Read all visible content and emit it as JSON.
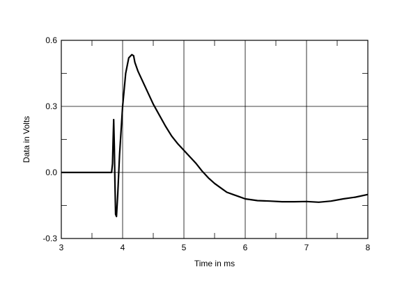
{
  "chart_data": {
    "type": "line",
    "title": "",
    "xlabel": "Time in ms",
    "ylabel": "Data in Volts",
    "xlim": [
      3,
      8
    ],
    "ylim": [
      -0.3,
      0.6
    ],
    "xticks": [
      3,
      4,
      5,
      6,
      7,
      8
    ],
    "yticks": [
      -0.3,
      0.0,
      0.3,
      0.6
    ],
    "xtick_labels": [
      "3",
      "4",
      "5",
      "6",
      "7",
      "8"
    ],
    "ytick_labels": [
      "-0.3",
      "0.0",
      "0.3",
      "0.6"
    ],
    "grid": true,
    "legend": "none",
    "line_color": "#000000",
    "series": [
      {
        "x": [
          3.0,
          3.5,
          3.8,
          3.82,
          3.835,
          3.845,
          3.855,
          3.865,
          3.875,
          3.885,
          3.9,
          3.92,
          3.95,
          4.0,
          4.05,
          4.1,
          4.15,
          4.18,
          4.2,
          4.25,
          4.3,
          4.4,
          4.5,
          4.6,
          4.7,
          4.8,
          4.9,
          5.0,
          5.1,
          5.2,
          5.3,
          5.4,
          5.5,
          5.6,
          5.7,
          5.8,
          5.9,
          6.0,
          6.2,
          6.4,
          6.6,
          6.8,
          7.0,
          7.2,
          7.4,
          7.6,
          7.8,
          8.0
        ],
        "y": [
          0.0,
          0.0,
          0.0,
          0.0,
          0.04,
          0.15,
          0.24,
          0.12,
          -0.05,
          -0.19,
          -0.2,
          -0.1,
          0.08,
          0.3,
          0.45,
          0.52,
          0.535,
          0.53,
          0.5,
          0.46,
          0.43,
          0.37,
          0.31,
          0.26,
          0.21,
          0.165,
          0.13,
          0.1,
          0.07,
          0.04,
          0.005,
          -0.025,
          -0.05,
          -0.07,
          -0.09,
          -0.1,
          -0.11,
          -0.12,
          -0.128,
          -0.13,
          -0.133,
          -0.133,
          -0.132,
          -0.135,
          -0.13,
          -0.12,
          -0.112,
          -0.1
        ]
      }
    ]
  }
}
